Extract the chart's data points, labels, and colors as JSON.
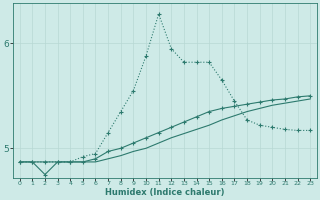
{
  "title": "",
  "xlabel": "Humidex (Indice chaleur)",
  "ylabel": "",
  "bg_color": "#ceeae7",
  "grid_color": "#b8d8d4",
  "line_color": "#2d7a6e",
  "figsize": [
    3.2,
    2.0
  ],
  "dpi": 100,
  "ylim": [
    4.72,
    6.38
  ],
  "xlim": [
    -0.5,
    23.5
  ],
  "yticks": [
    5,
    6
  ],
  "xticks": [
    0,
    1,
    2,
    3,
    4,
    5,
    6,
    7,
    8,
    9,
    10,
    11,
    12,
    13,
    14,
    15,
    16,
    17,
    18,
    19,
    20,
    21,
    22,
    23
  ],
  "curve1_x": [
    0,
    1,
    2,
    3,
    4,
    5,
    6,
    7,
    8,
    9,
    10,
    11,
    12,
    13,
    14,
    15,
    16,
    17,
    18,
    19,
    20,
    21,
    22,
    23
  ],
  "curve1_y": [
    4.87,
    4.87,
    4.87,
    4.87,
    4.87,
    4.92,
    4.95,
    5.15,
    5.35,
    5.55,
    5.88,
    6.28,
    5.95,
    5.82,
    5.82,
    5.82,
    5.65,
    5.45,
    5.27,
    5.22,
    5.2,
    5.18,
    5.17,
    5.17
  ],
  "curve2_x": [
    0,
    1,
    2,
    3,
    4,
    5,
    6,
    7,
    8,
    9,
    10,
    11,
    12,
    13,
    14,
    15,
    16,
    17,
    18,
    19,
    20,
    21,
    22,
    23
  ],
  "curve2_y": [
    4.87,
    4.87,
    4.75,
    4.87,
    4.87,
    4.87,
    4.9,
    4.97,
    5.0,
    5.05,
    5.1,
    5.15,
    5.2,
    5.25,
    5.3,
    5.35,
    5.38,
    5.4,
    5.42,
    5.44,
    5.46,
    5.47,
    5.49,
    5.5
  ],
  "curve3_x": [
    0,
    1,
    2,
    3,
    4,
    5,
    6,
    7,
    8,
    9,
    10,
    11,
    12,
    13,
    14,
    15,
    16,
    17,
    18,
    19,
    20,
    21,
    22,
    23
  ],
  "curve3_y": [
    4.87,
    4.87,
    4.87,
    4.87,
    4.87,
    4.87,
    4.87,
    4.9,
    4.93,
    4.97,
    5.0,
    5.05,
    5.1,
    5.14,
    5.18,
    5.22,
    5.27,
    5.31,
    5.35,
    5.38,
    5.41,
    5.43,
    5.45,
    5.47
  ]
}
